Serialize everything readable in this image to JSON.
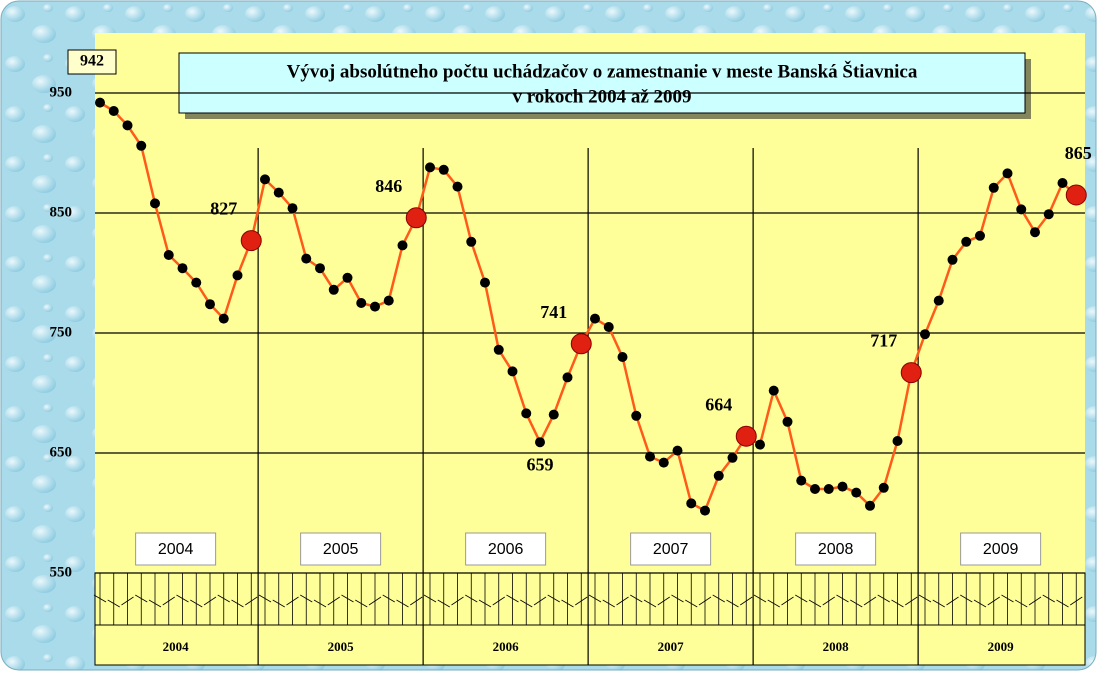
{
  "chart_data": {
    "type": "line",
    "title": "Vývoj absolútneho počtu uchádzačov o zamestnanie v  meste Banská Štiavnica",
    "subtitle": "v rokoch 2004 až 2009",
    "years": [
      "2004",
      "2005",
      "2006",
      "2007",
      "2008",
      "2009"
    ],
    "values": [
      942,
      935,
      923,
      906,
      858,
      815,
      804,
      792,
      774,
      762,
      798,
      827,
      878,
      867,
      854,
      812,
      804,
      786,
      796,
      775,
      772,
      777,
      823,
      846,
      888,
      886,
      872,
      826,
      792,
      736,
      718,
      683,
      659,
      682,
      713,
      741,
      762,
      755,
      730,
      681,
      647,
      642,
      652,
      608,
      602,
      631,
      646,
      664,
      657,
      702,
      676,
      627,
      620,
      620,
      622,
      617,
      606,
      621,
      660,
      717,
      749,
      777,
      811,
      826,
      831,
      871,
      883,
      853,
      834,
      849,
      875,
      865
    ],
    "value_labels": [
      "942",
      null,
      null,
      null,
      null,
      null,
      null,
      null,
      null,
      null,
      null,
      "827",
      null,
      null,
      null,
      null,
      null,
      null,
      null,
      null,
      null,
      null,
      null,
      "846",
      null,
      null,
      null,
      null,
      null,
      null,
      null,
      null,
      "659",
      null,
      null,
      "741",
      null,
      null,
      null,
      null,
      null,
      null,
      null,
      null,
      null,
      null,
      null,
      "664",
      null,
      null,
      null,
      null,
      null,
      null,
      null,
      null,
      null,
      null,
      null,
      "717",
      null,
      null,
      null,
      null,
      null,
      null,
      null,
      null,
      null,
      null,
      null,
      "865"
    ],
    "color": "#ff5a1a",
    "ylim": [
      550,
      1000
    ],
    "yticks": [
      550,
      650,
      750,
      850,
      950
    ],
    "grid": true
  }
}
